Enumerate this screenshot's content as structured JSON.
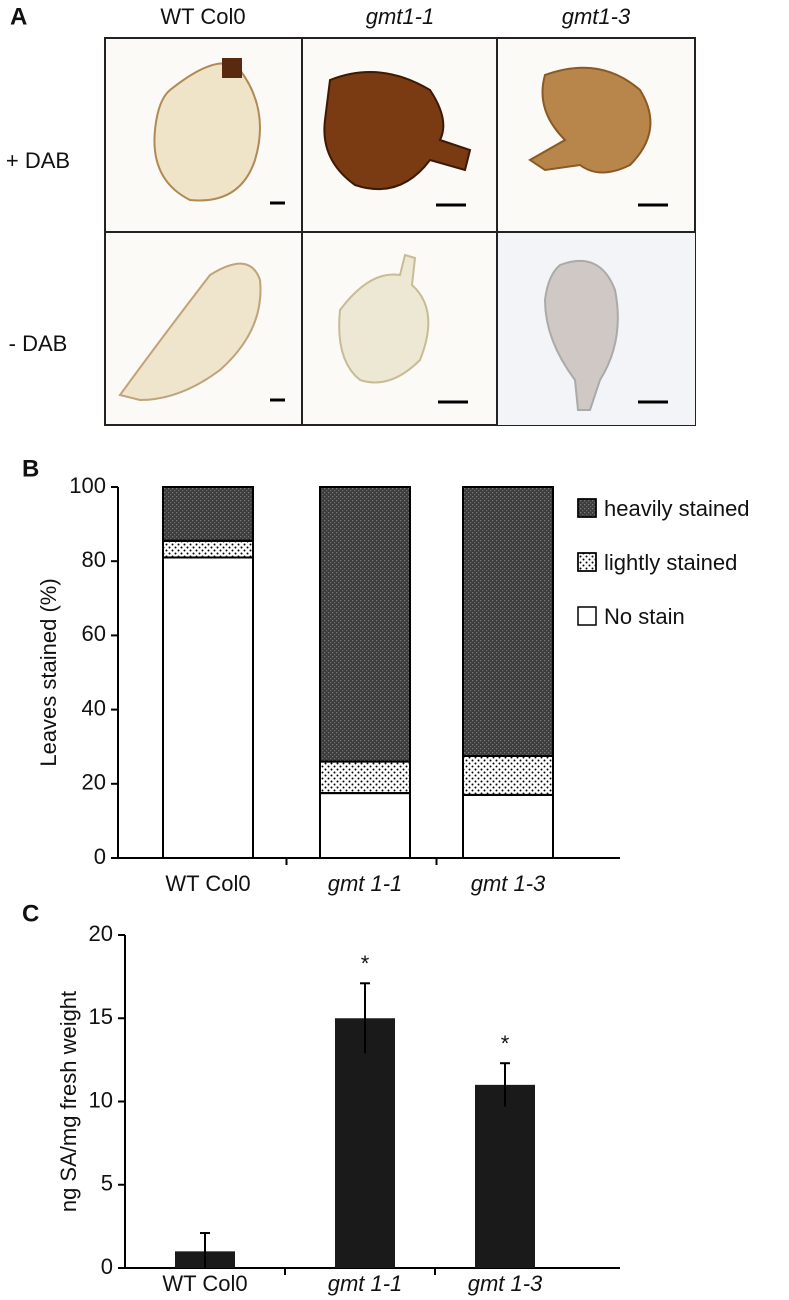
{
  "panel_a": {
    "label": "A",
    "columns": [
      "WT Col0",
      "gmt1-1",
      "gmt1-3"
    ],
    "rows": [
      "+ DAB",
      "- DAB"
    ]
  },
  "chart_data": [
    {
      "type": "stacked_bar",
      "panel_label": "B",
      "y_label": "Leaves stained (%)",
      "categories": [
        "WT Col0",
        "gmt 1-1",
        "gmt 1-3"
      ],
      "italic": [
        false,
        true,
        true
      ],
      "series": [
        {
          "name": "No stain",
          "color": "#ffffff",
          "values": [
            81,
            17.5,
            17
          ]
        },
        {
          "name": "lightly stained",
          "color": "#ffffff",
          "pattern": "dots",
          "values": [
            4.5,
            8.5,
            10.5
          ]
        },
        {
          "name": "heavily stained",
          "color": "#3c3c3c",
          "pattern": "texture",
          "values": [
            14.5,
            74,
            72.5
          ]
        }
      ],
      "ylim": [
        0,
        100
      ],
      "yticks": [
        0,
        20,
        40,
        60,
        80,
        100
      ]
    },
    {
      "type": "bar",
      "panel_label": "C",
      "y_label": "ng SA/mg  fresh weight",
      "categories": [
        "WT Col0",
        "gmt 1-1",
        "gmt 1-3"
      ],
      "italic": [
        false,
        true,
        true
      ],
      "values": [
        1,
        15,
        11
      ],
      "errors": [
        1.1,
        2.1,
        1.3
      ],
      "color": "#1a1a1a",
      "annotations": [
        {
          "text": "*",
          "category": "gmt 1-1"
        },
        {
          "text": "*",
          "category": "gmt 1-3"
        }
      ],
      "ylim": [
        0,
        20
      ],
      "yticks": [
        0,
        5,
        10,
        15,
        20
      ]
    }
  ]
}
